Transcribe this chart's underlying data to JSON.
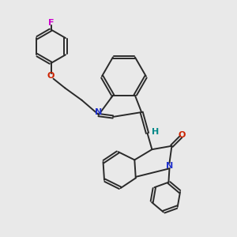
{
  "background_color": "#e9e9e9",
  "bond_color": "#2a2a2a",
  "fig_size": [
    3.0,
    3.0
  ],
  "dpi": 100,
  "lw": 1.4,
  "atom_labels": {
    "F": {
      "color": "#cc00cc"
    },
    "O": {
      "color": "#cc2200"
    },
    "N": {
      "color": "#2233cc"
    },
    "H": {
      "color": "#008888"
    }
  }
}
